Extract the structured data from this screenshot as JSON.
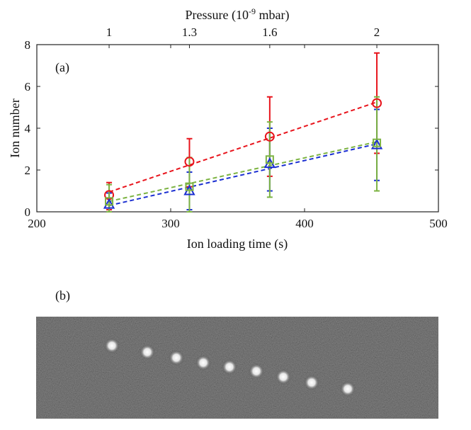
{
  "chart_data": {
    "type": "scatter",
    "panel_label": "(a)",
    "xlabel": "Ion loading time (s)",
    "ylabel": "Ion number",
    "top_axis": {
      "label_prefix": "Pressure (10",
      "label_exponent": "-9",
      "label_suffix": " mbar)",
      "ticks": [
        {
          "x": 254,
          "label": "1"
        },
        {
          "x": 314,
          "label": "1.3"
        },
        {
          "x": 374,
          "label": "1.6"
        },
        {
          "x": 454,
          "label": "2"
        }
      ]
    },
    "xlim": [
      200,
      500
    ],
    "ylim": [
      0,
      8
    ],
    "xticks": [
      200,
      300,
      400,
      500
    ],
    "yticks": [
      0,
      2,
      4,
      6,
      8
    ],
    "grid": false,
    "series": [
      {
        "name": "circles",
        "marker": "circle",
        "color": "#e8141c",
        "points": [
          {
            "x": 254,
            "y": 0.8,
            "lo": 0.1,
            "hi": 1.4
          },
          {
            "x": 314,
            "y": 2.4,
            "lo": 1.2,
            "hi": 3.5
          },
          {
            "x": 374,
            "y": 3.6,
            "lo": 1.7,
            "hi": 5.5
          },
          {
            "x": 454,
            "y": 5.2,
            "lo": 2.8,
            "hi": 7.6
          }
        ],
        "fit": [
          [
            254,
            0.95
          ],
          [
            454,
            5.25
          ]
        ]
      },
      {
        "name": "triangles",
        "marker": "triangle",
        "color": "#1b2fd1",
        "points": [
          {
            "x": 254,
            "y": 0.35,
            "lo": 0.0,
            "hi": 0.9
          },
          {
            "x": 314,
            "y": 1.0,
            "lo": 0.1,
            "hi": 1.9
          },
          {
            "x": 374,
            "y": 2.3,
            "lo": 1.0,
            "hi": 4.0
          },
          {
            "x": 454,
            "y": 3.2,
            "lo": 1.5,
            "hi": 4.9
          }
        ],
        "fit": [
          [
            254,
            0.3
          ],
          [
            454,
            3.25
          ]
        ]
      },
      {
        "name": "squares",
        "marker": "square",
        "color": "#7cb342",
        "points": [
          {
            "x": 254,
            "y": 0.5,
            "lo": 0.0,
            "hi": 1.3
          },
          {
            "x": 314,
            "y": 1.2,
            "lo": 0.0,
            "hi": 2.6
          },
          {
            "x": 374,
            "y": 2.5,
            "lo": 0.7,
            "hi": 4.3
          },
          {
            "x": 454,
            "y": 3.3,
            "lo": 1.0,
            "hi": 5.5
          }
        ],
        "fit": [
          [
            254,
            0.5
          ],
          [
            454,
            3.35
          ]
        ]
      }
    ]
  },
  "image_panel": {
    "label": "(b)",
    "ion_count": 9
  }
}
